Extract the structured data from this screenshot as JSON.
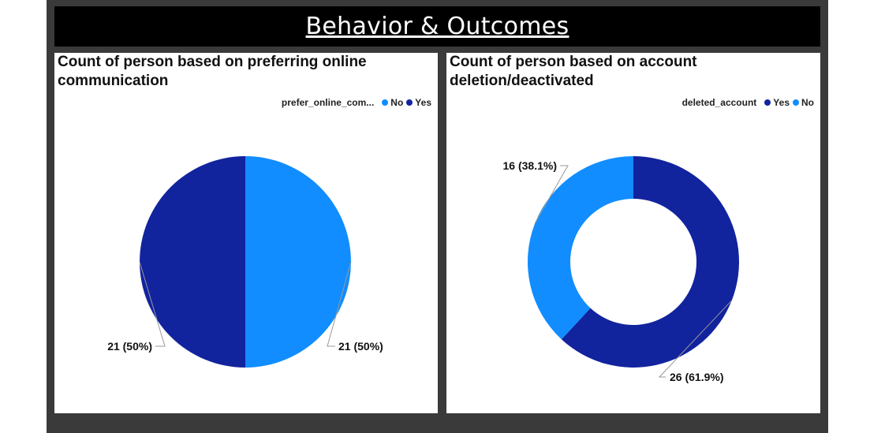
{
  "page": {
    "banner_title": "Behavior & Outcomes"
  },
  "chart_data": [
    {
      "type": "pie",
      "title": "Count of person based on preferring online communication",
      "legend_title": "prefer_online_com...",
      "legend_position": "top-right",
      "series": [
        {
          "name": "No",
          "value": 21,
          "label": "21 (50%)",
          "color": "#118dff"
        },
        {
          "name": "Yes",
          "value": 21,
          "label": "21 (50%)",
          "color": "#12239e"
        }
      ]
    },
    {
      "type": "donut",
      "title": "Count of person based on account deletion/deactivated",
      "legend_title": "deleted_account",
      "legend_position": "top-right",
      "series": [
        {
          "name": "Yes",
          "value": 26,
          "label": "26 (61.9%)",
          "color": "#12239e"
        },
        {
          "name": "No",
          "value": 16,
          "label": "16 (38.1%)",
          "color": "#118dff"
        }
      ]
    }
  ]
}
